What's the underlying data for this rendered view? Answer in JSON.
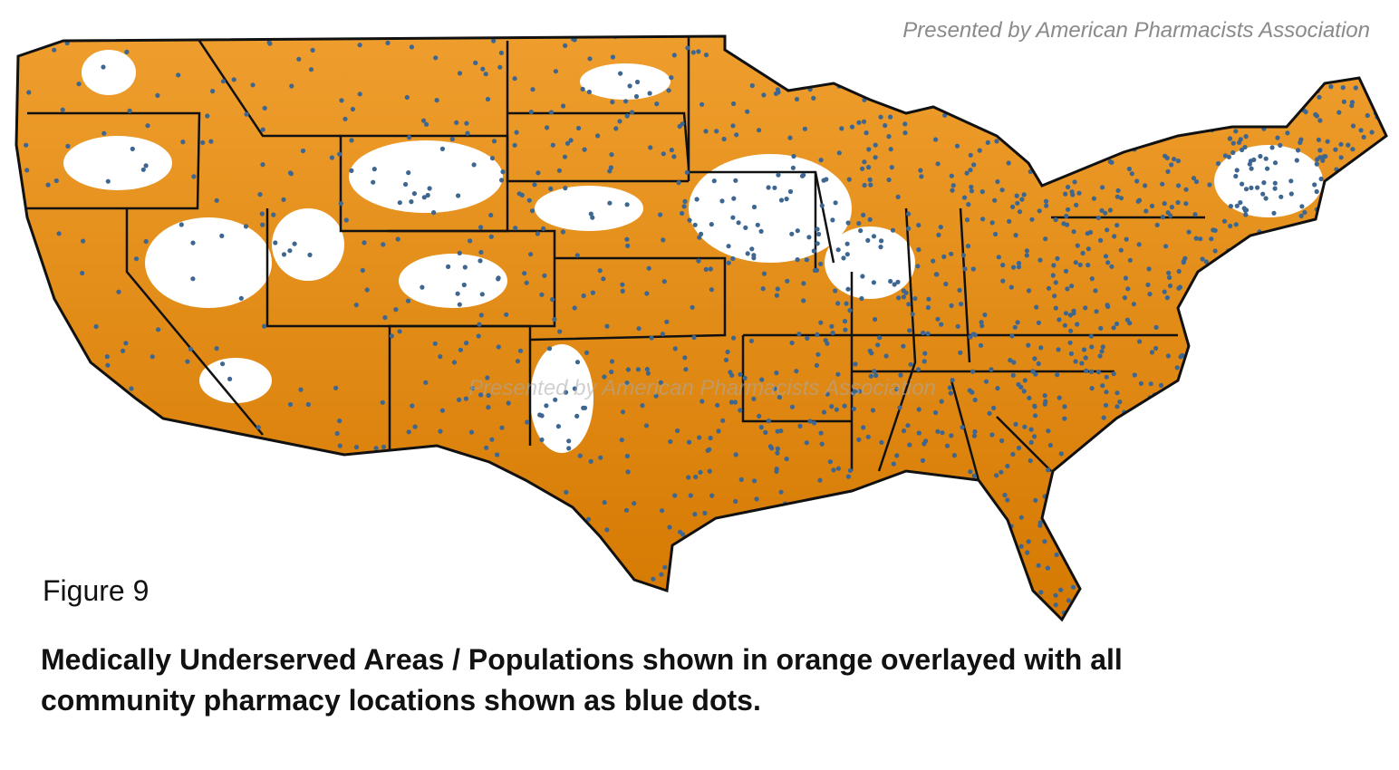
{
  "credit": "Presented by American Pharmacists Association",
  "figure_label": "Figure 9",
  "caption": "Medically Underserved Areas / Populations shown in orange overlayed with all community pharmacy locations shown as blue dots."
}
